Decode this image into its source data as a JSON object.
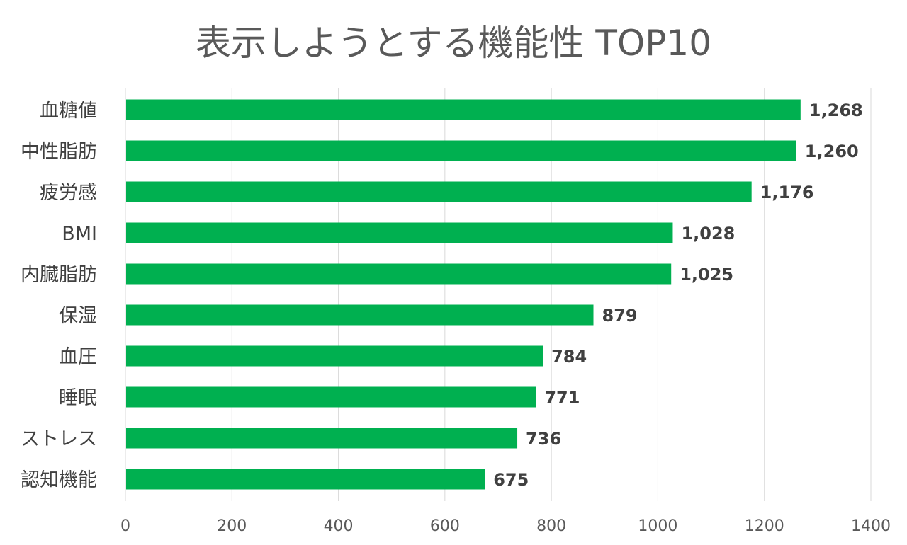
{
  "chart_data": {
    "type": "bar",
    "orientation": "horizontal",
    "title": "表示しようとする機能性 TOP10",
    "categories": [
      "血糖値",
      "中性脂肪",
      "疲労感",
      "BMI",
      "内臓脂肪",
      "保湿",
      "血圧",
      "睡眠",
      "ストレス",
      "認知機能"
    ],
    "values": [
      1268,
      1260,
      1176,
      1028,
      1025,
      879,
      784,
      771,
      736,
      675
    ],
    "value_labels": [
      "1,268",
      "1,260",
      "1,176",
      "1,028",
      "1,025",
      "879",
      "784",
      "771",
      "736",
      "675"
    ],
    "xlim": [
      0,
      1400
    ],
    "x_ticks": [
      0,
      200,
      400,
      600,
      800,
      1000,
      1200,
      1400
    ],
    "xlabel": "",
    "ylabel": "",
    "grid": "vertical",
    "legend": "none",
    "bar_color": "#00b050"
  }
}
